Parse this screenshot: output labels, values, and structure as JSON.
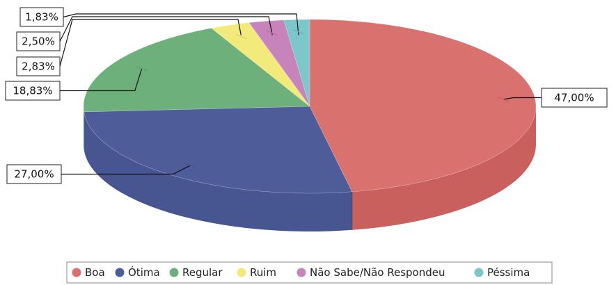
{
  "chart_data": {
    "type": "pie",
    "style": "3d",
    "title": "",
    "slices": [
      {
        "name": "Boa",
        "value": 47.0,
        "label": "47,00%",
        "color": "#d9716f",
        "side": "#c9605e"
      },
      {
        "name": "Ótima",
        "value": 27.0,
        "label": "27,00%",
        "color": "#4e5d9a",
        "side": "#475590"
      },
      {
        "name": "Regular",
        "value": 18.83,
        "label": "18,83%",
        "color": "#6db07c",
        "side": "#5f9f6e"
      },
      {
        "name": "Ruim",
        "value": 2.83,
        "label": "2,83%",
        "color": "#f2ea7a",
        "side": "#ded66a"
      },
      {
        "name": "Não Sabe/Não Respondeu",
        "value": 2.5,
        "label": "2,50%",
        "color": "#c784ba",
        "side": "#b374a7"
      },
      {
        "name": "Péssima",
        "value": 1.83,
        "label": "1,83%",
        "color": "#7cc6cc",
        "side": "#6bb5bb"
      }
    ],
    "legend_position": "bottom"
  }
}
